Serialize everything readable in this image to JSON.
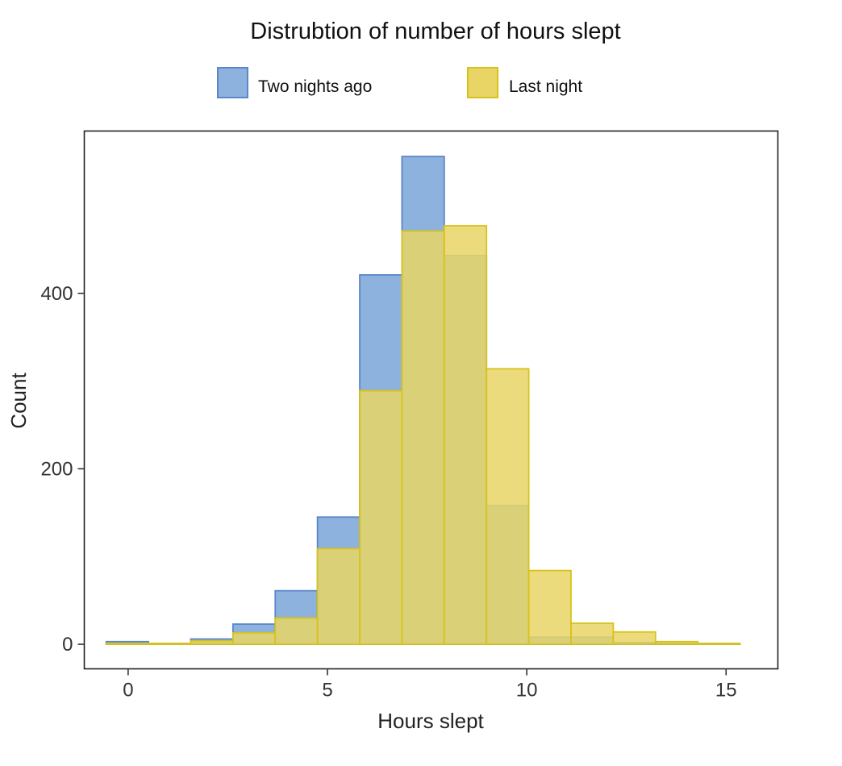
{
  "chart_data": {
    "type": "bar",
    "subtype": "overlapping-histogram",
    "title": "Distrubtion of number of hours slept",
    "xlabel": "Hours slept",
    "ylabel": "Count",
    "xlim": [
      -1.1,
      16.3
    ],
    "ylim": [
      -28,
      585
    ],
    "xticks": [
      0,
      5,
      10,
      15
    ],
    "yticks": [
      0,
      200,
      400
    ],
    "xtick_labels": [
      "0",
      "5",
      "10",
      "15"
    ],
    "ytick_labels": [
      "0",
      "200",
      "400"
    ],
    "grid": false,
    "legend_position": "top",
    "bin_width": 1.06,
    "bin_starts": [
      -0.55,
      0.51,
      1.57,
      2.63,
      3.69,
      4.75,
      5.81,
      6.87,
      7.93,
      8.99,
      10.05,
      11.11,
      12.17,
      13.23,
      14.29
    ],
    "series": [
      {
        "name": "Two nights ago",
        "fill": "#8db2de",
        "stroke": "#5b86c9",
        "values": [
          3,
          1,
          6,
          23,
          61,
          145,
          421,
          556,
          443,
          158,
          8,
          8,
          2,
          2,
          1
        ]
      },
      {
        "name": "Last night",
        "fill": "#e8d566",
        "stroke": "#d8c21a",
        "values": [
          1,
          1,
          4,
          13,
          30,
          109,
          289,
          471,
          477,
          314,
          84,
          24,
          14,
          3,
          1
        ]
      }
    ]
  }
}
